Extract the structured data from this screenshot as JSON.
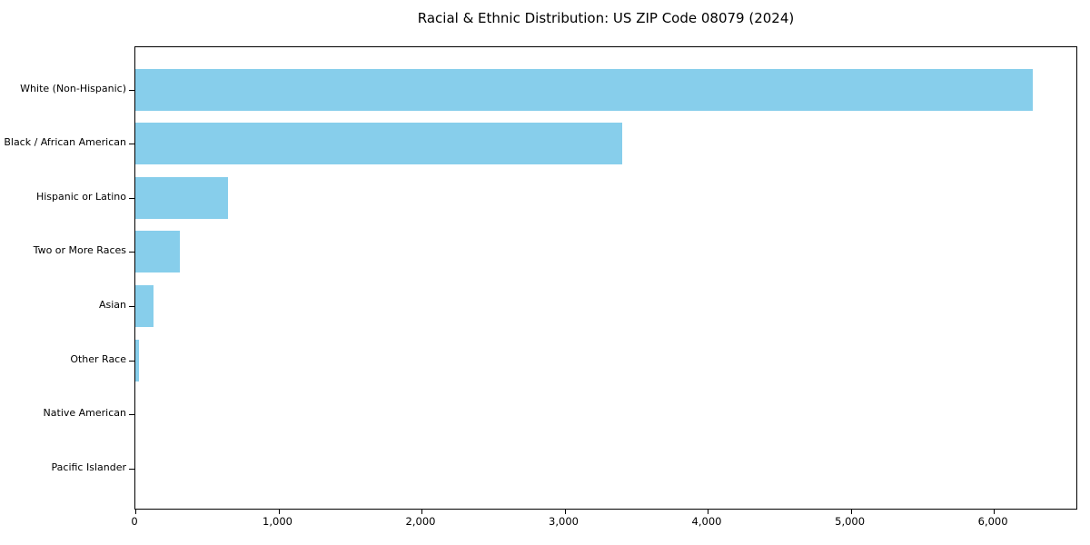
{
  "chart_data": {
    "type": "bar",
    "orientation": "horizontal",
    "title": "Racial & Ethnic Distribution: US ZIP Code 08079 (2024)",
    "xlabel": "",
    "ylabel": "",
    "categories": [
      "White (Non-Hispanic)",
      "Black / African American",
      "Hispanic or Latino",
      "Two or More Races",
      "Asian",
      "Other Race",
      "Native American",
      "Pacific Islander"
    ],
    "values": [
      6270,
      3400,
      645,
      310,
      125,
      25,
      0,
      0
    ],
    "xlim": [
      0,
      6590
    ],
    "xticks": [
      0,
      1000,
      2000,
      3000,
      4000,
      5000,
      6000
    ],
    "xtick_labels": [
      "0",
      "1,000",
      "2,000",
      "3,000",
      "4,000",
      "5,000",
      "6,000"
    ],
    "bar_color": "#87CEEB",
    "background_color": "#ffffff",
    "spine_color": "#000000",
    "grid": false,
    "legend": null
  }
}
